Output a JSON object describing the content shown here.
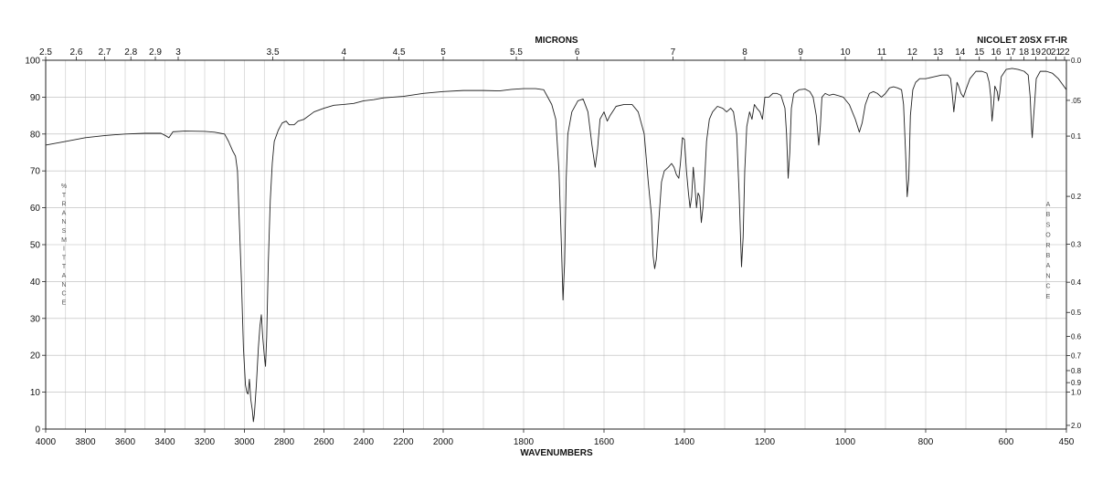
{
  "chart_data": {
    "type": "line",
    "title": "NICOLET 20SX FT-IR",
    "xlabel": "WAVENUMBERS",
    "x2label": "MICRONS",
    "ylabel": "% TRANSMITTANCE",
    "y2label": "ABSORBANCE",
    "xlim": [
      4000,
      450
    ],
    "ylim": [
      0,
      100
    ],
    "grid": true,
    "x_ticks": [
      "4000",
      "3800",
      "3600",
      "3400",
      "3200",
      "3000",
      "2800",
      "2600",
      "2400",
      "2200",
      "2000",
      "1800",
      "1600",
      "1400",
      "1200",
      "1000",
      "800",
      "600",
      "450"
    ],
    "y_ticks": [
      "0",
      "10",
      "20",
      "30",
      "40",
      "50",
      "60",
      "70",
      "80",
      "90",
      "100"
    ],
    "micron_ticks": [
      "2.5",
      "2.6",
      "2.7",
      "2.8",
      "2.9",
      "3",
      "3.5",
      "4",
      "4.5",
      "5",
      "5.5",
      "6",
      "7",
      "8",
      "9",
      "10",
      "11",
      "12",
      "13",
      "14",
      "15",
      "16",
      "17",
      "18",
      "19",
      "20",
      "21",
      "22"
    ],
    "absorbance_ticks": [
      "0.0",
      ".05",
      "0.1",
      "0.2",
      "0.3",
      "0.4",
      "0.5",
      "0.6",
      "0.7",
      "0.8",
      "0.9",
      "1.0",
      "2.0"
    ],
    "series": [
      {
        "points": [
          [
            4000,
            77
          ],
          [
            3900,
            78
          ],
          [
            3800,
            79
          ],
          [
            3700,
            79.6
          ],
          [
            3600,
            80
          ],
          [
            3500,
            80.2
          ],
          [
            3420,
            80.2
          ],
          [
            3395,
            79.5
          ],
          [
            3380,
            79
          ],
          [
            3360,
            80.6
          ],
          [
            3300,
            80.8
          ],
          [
            3200,
            80.7
          ],
          [
            3150,
            80.5
          ],
          [
            3100,
            80
          ],
          [
            3080,
            78
          ],
          [
            3060,
            75.5
          ],
          [
            3045,
            74
          ],
          [
            3035,
            70
          ],
          [
            3025,
            55
          ],
          [
            3015,
            40
          ],
          [
            3005,
            22
          ],
          [
            2995,
            12
          ],
          [
            2988,
            10
          ],
          [
            2982,
            9.5
          ],
          [
            2975,
            13.5
          ],
          [
            2968,
            8
          ],
          [
            2960,
            5
          ],
          [
            2955,
            2
          ],
          [
            2950,
            4
          ],
          [
            2940,
            12
          ],
          [
            2930,
            22
          ],
          [
            2922,
            28
          ],
          [
            2915,
            31
          ],
          [
            2908,
            25
          ],
          [
            2900,
            20
          ],
          [
            2894,
            17
          ],
          [
            2888,
            25
          ],
          [
            2880,
            45
          ],
          [
            2870,
            62
          ],
          [
            2860,
            72
          ],
          [
            2850,
            78
          ],
          [
            2830,
            81
          ],
          [
            2810,
            83
          ],
          [
            2790,
            83.5
          ],
          [
            2775,
            82.5
          ],
          [
            2750,
            82.5
          ],
          [
            2730,
            83.5
          ],
          [
            2700,
            84
          ],
          [
            2650,
            86
          ],
          [
            2600,
            87
          ],
          [
            2550,
            87.8
          ],
          [
            2500,
            88
          ],
          [
            2450,
            88.3
          ],
          [
            2400,
            89
          ],
          [
            2350,
            89.3
          ],
          [
            2300,
            89.8
          ],
          [
            2200,
            90.2
          ],
          [
            2100,
            91
          ],
          [
            2000,
            91.5
          ],
          [
            1950,
            91.8
          ],
          [
            1900,
            91.8
          ],
          [
            1860,
            91.7
          ],
          [
            1830,
            92.1
          ],
          [
            1800,
            92.3
          ],
          [
            1770,
            92.3
          ],
          [
            1750,
            92
          ],
          [
            1740,
            90
          ],
          [
            1730,
            88
          ],
          [
            1720,
            84
          ],
          [
            1712,
            70
          ],
          [
            1706,
            50
          ],
          [
            1702,
            35
          ],
          [
            1698,
            45
          ],
          [
            1694,
            68
          ],
          [
            1690,
            80
          ],
          [
            1680,
            86
          ],
          [
            1665,
            89
          ],
          [
            1652,
            89.5
          ],
          [
            1640,
            86
          ],
          [
            1630,
            77
          ],
          [
            1622,
            71
          ],
          [
            1616,
            76
          ],
          [
            1610,
            84
          ],
          [
            1600,
            86
          ],
          [
            1592,
            83.5
          ],
          [
            1585,
            85
          ],
          [
            1570,
            87.5
          ],
          [
            1550,
            88
          ],
          [
            1530,
            88
          ],
          [
            1515,
            86
          ],
          [
            1500,
            80
          ],
          [
            1490,
            67
          ],
          [
            1482,
            58
          ],
          [
            1478,
            47
          ],
          [
            1474,
            43.5
          ],
          [
            1470,
            46
          ],
          [
            1464,
            56
          ],
          [
            1457,
            67
          ],
          [
            1450,
            70
          ],
          [
            1440,
            71
          ],
          [
            1432,
            72
          ],
          [
            1426,
            71
          ],
          [
            1420,
            69
          ],
          [
            1414,
            68
          ],
          [
            1410,
            72
          ],
          [
            1405,
            79
          ],
          [
            1400,
            78.5
          ],
          [
            1395,
            70
          ],
          [
            1390,
            64
          ],
          [
            1386,
            60
          ],
          [
            1382,
            63
          ],
          [
            1378,
            71
          ],
          [
            1374,
            66
          ],
          [
            1370,
            60
          ],
          [
            1366,
            64
          ],
          [
            1362,
            63
          ],
          [
            1358,
            56
          ],
          [
            1354,
            60
          ],
          [
            1350,
            67
          ],
          [
            1345,
            78
          ],
          [
            1338,
            84
          ],
          [
            1330,
            86
          ],
          [
            1318,
            87.5
          ],
          [
            1305,
            87
          ],
          [
            1295,
            86
          ],
          [
            1285,
            87
          ],
          [
            1278,
            86
          ],
          [
            1270,
            80
          ],
          [
            1264,
            64
          ],
          [
            1258,
            44
          ],
          [
            1254,
            52
          ],
          [
            1250,
            70
          ],
          [
            1245,
            82
          ],
          [
            1238,
            86
          ],
          [
            1232,
            84
          ],
          [
            1226,
            88
          ],
          [
            1220,
            87
          ],
          [
            1212,
            86
          ],
          [
            1206,
            84
          ],
          [
            1200,
            90
          ],
          [
            1190,
            90
          ],
          [
            1180,
            91
          ],
          [
            1170,
            91
          ],
          [
            1160,
            90.5
          ],
          [
            1150,
            87
          ],
          [
            1146,
            80
          ],
          [
            1142,
            68
          ],
          [
            1138,
            75
          ],
          [
            1134,
            87
          ],
          [
            1128,
            91
          ],
          [
            1115,
            92
          ],
          [
            1100,
            92.2
          ],
          [
            1088,
            91.5
          ],
          [
            1080,
            90
          ],
          [
            1072,
            85
          ],
          [
            1066,
            77
          ],
          [
            1062,
            82
          ],
          [
            1058,
            90
          ],
          [
            1050,
            91
          ],
          [
            1040,
            90.5
          ],
          [
            1030,
            90.8
          ],
          [
            1020,
            90.5
          ],
          [
            1005,
            90
          ],
          [
            990,
            88
          ],
          [
            975,
            84
          ],
          [
            965,
            80.5
          ],
          [
            958,
            83
          ],
          [
            950,
            88
          ],
          [
            940,
            91
          ],
          [
            930,
            91.5
          ],
          [
            920,
            91
          ],
          [
            910,
            90
          ],
          [
            900,
            91
          ],
          [
            890,
            92.5
          ],
          [
            880,
            92.8
          ],
          [
            870,
            92.5
          ],
          [
            860,
            92
          ],
          [
            855,
            88
          ],
          [
            850,
            75
          ],
          [
            846,
            63
          ],
          [
            842,
            68
          ],
          [
            838,
            85
          ],
          [
            832,
            92
          ],
          [
            825,
            94
          ],
          [
            815,
            95
          ],
          [
            800,
            95
          ],
          [
            780,
            95.5
          ],
          [
            760,
            96
          ],
          [
            745,
            96
          ],
          [
            738,
            95
          ],
          [
            734,
            91
          ],
          [
            730,
            86
          ],
          [
            726,
            90
          ],
          [
            722,
            94
          ],
          [
            718,
            93
          ],
          [
            712,
            91
          ],
          [
            706,
            90
          ],
          [
            700,
            92
          ],
          [
            690,
            95
          ],
          [
            675,
            97
          ],
          [
            660,
            97
          ],
          [
            648,
            96.5
          ],
          [
            642,
            94
          ],
          [
            638,
            90
          ],
          [
            635,
            83.5
          ],
          [
            631,
            88
          ],
          [
            628,
            93
          ],
          [
            622,
            91.5
          ],
          [
            619,
            89
          ],
          [
            616,
            91
          ],
          [
            612,
            95.5
          ],
          [
            600,
            97.5
          ],
          [
            585,
            97.8
          ],
          [
            570,
            97.5
          ],
          [
            555,
            97
          ],
          [
            545,
            96
          ],
          [
            540,
            90
          ],
          [
            537,
            82
          ],
          [
            535,
            79
          ],
          [
            532,
            84
          ],
          [
            528,
            90
          ],
          [
            525,
            95
          ],
          [
            515,
            97
          ],
          [
            500,
            97
          ],
          [
            485,
            96.5
          ],
          [
            470,
            95
          ],
          [
            460,
            93.5
          ],
          [
            450,
            92
          ]
        ]
      }
    ]
  }
}
